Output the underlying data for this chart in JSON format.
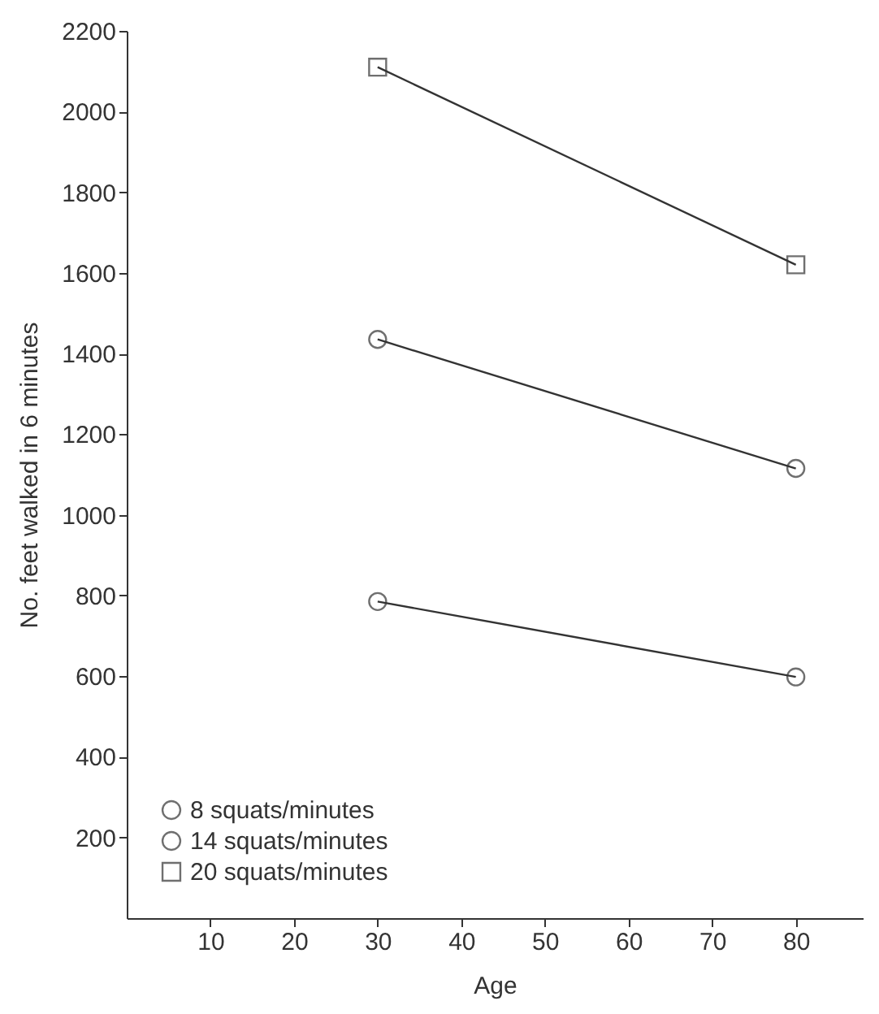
{
  "chart_data": {
    "type": "line",
    "xlabel": "Age",
    "ylabel": "No. feet walked in 6 minutes",
    "x": [
      30,
      80
    ],
    "series": [
      {
        "name": "8 squats/minutes",
        "color": "#333333",
        "values": [
          785,
          598
        ],
        "marker": "circle"
      },
      {
        "name": "14 squats/minutes",
        "color": "#333333",
        "values": [
          1435,
          1115
        ],
        "marker": "circle"
      },
      {
        "name": "20 squats/minutes",
        "color": "#333333",
        "values": [
          2110,
          1620
        ],
        "marker": "square"
      }
    ],
    "xlim": [
      0,
      88
    ],
    "xticks": [
      10,
      20,
      30,
      40,
      50,
      60,
      70,
      80
    ],
    "ylim": [
      0,
      2200
    ],
    "yticks": [
      200,
      400,
      600,
      800,
      1000,
      1200,
      1400,
      1600,
      1800,
      2000,
      2200
    ],
    "grid": false,
    "legend": "bottom left",
    "line_style": "solid"
  }
}
